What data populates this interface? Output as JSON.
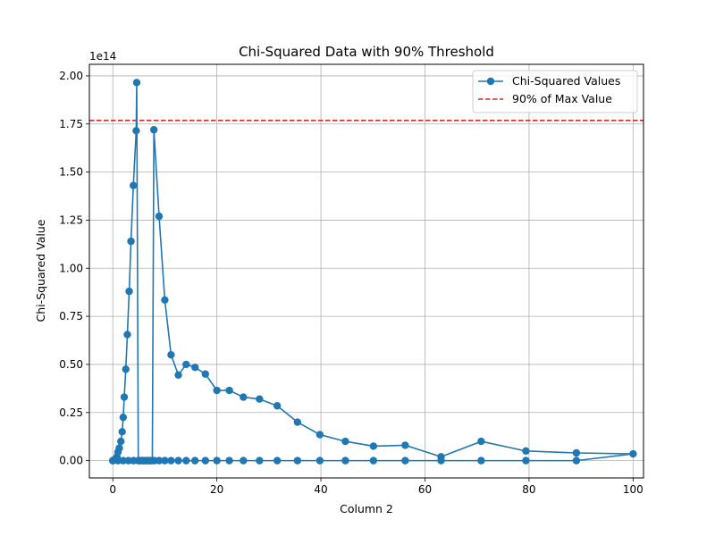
{
  "chart_data": {
    "type": "line",
    "title": "Chi-Squared Data with 90% Threshold",
    "xlabel": "Column 2",
    "ylabel": "Chi-Squared Value",
    "y_offset_label": "1e14",
    "y_scale": 100000000000000,
    "xlim": [
      -4.5,
      102
    ],
    "ylim": [
      -0.09,
      2.06
    ],
    "xticks": [
      0,
      20,
      40,
      60,
      80,
      100
    ],
    "xtick_labels": [
      "0",
      "20",
      "40",
      "60",
      "80",
      "100"
    ],
    "yticks": [
      0.0,
      0.25,
      0.5,
      0.75,
      1.0,
      1.25,
      1.5,
      1.75,
      2.0
    ],
    "ytick_labels": [
      "0.00",
      "0.25",
      "0.50",
      "0.75",
      "1.00",
      "1.25",
      "1.50",
      "1.75",
      "2.00"
    ],
    "grid": true,
    "legend_position": "upper right",
    "series": [
      {
        "name": "Chi-Squared Values",
        "color": "#1f77b4",
        "marker": "circle",
        "x": [
          0,
          0.1,
          0.2,
          0.3,
          0.45,
          0.6,
          0.8,
          1.0,
          1.25,
          1.55,
          1.8,
          2.0,
          2.2,
          2.5,
          2.8,
          3.15,
          3.5,
          3.95,
          4.5,
          4.6,
          4.9,
          5.2,
          5.5,
          5.8,
          6.1,
          6.4,
          6.7,
          7.0,
          7.3,
          7.6,
          7.9,
          8.9,
          10.0,
          11.2,
          12.6,
          14.1,
          15.8,
          17.8,
          20.0,
          22.4,
          25.1,
          28.2,
          31.6,
          35.5,
          39.8,
          44.7,
          50.1,
          56.2,
          63.1,
          70.8,
          79.4,
          89.1,
          100,
          89.1,
          79.4,
          70.8,
          63.1,
          56.2,
          50.1,
          44.7,
          39.8,
          35.5,
          31.6,
          28.2,
          25.1,
          22.4,
          20.0,
          17.8,
          15.8,
          14.1,
          12.6,
          11.2,
          10.0,
          8.9,
          8.0,
          7.0,
          6.0,
          5.0,
          4.0,
          3.0,
          2.0,
          1.0,
          0
        ],
        "values": [
          0.0,
          0.001,
          0.002,
          0.004,
          0.006,
          0.01,
          0.02,
          0.045,
          0.065,
          0.1,
          0.15,
          0.225,
          0.33,
          0.475,
          0.655,
          0.88,
          1.14,
          1.43,
          1.715,
          1.965,
          0.0,
          0.0,
          0.0,
          0.0,
          0.0,
          0.0,
          0.0,
          0.0,
          0.0,
          0.0,
          1.72,
          1.27,
          0.835,
          0.55,
          0.445,
          0.5,
          0.485,
          0.45,
          0.365,
          0.365,
          0.33,
          0.32,
          0.285,
          0.2,
          0.135,
          0.1,
          0.075,
          0.08,
          0.02,
          0.1,
          0.05,
          0.04,
          0.035,
          0.0,
          0.0,
          0.0,
          0.0,
          0.0,
          0.0,
          0.0,
          0.0,
          0.0,
          0.0,
          0.0,
          0.0,
          0.0,
          0.0,
          0.0,
          0.0,
          0.0,
          0.0,
          0.0,
          0.0,
          0.0,
          0.0,
          0.0,
          0.0,
          0.0,
          0.0,
          0.0,
          0.0,
          0.0,
          0.0
        ]
      },
      {
        "name": "90% of Max Value",
        "color": "#d62728",
        "line_style": "dashed",
        "value": 1.7685
      }
    ]
  }
}
